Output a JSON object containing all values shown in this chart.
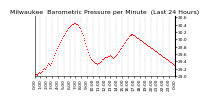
{
  "title": "Milwaukee  Barometric Pressure per Minute  (Last 24 Hours)",
  "line_color": "#ff0000",
  "bg_color": "#ffffff",
  "grid_color": "#c8c8c8",
  "ylim": [
    29.0,
    30.65
  ],
  "yticks": [
    29.0,
    29.2,
    29.4,
    29.6,
    29.8,
    30.0,
    30.2,
    30.4,
    30.6
  ],
  "pressure_values": [
    29.05,
    29.04,
    29.03,
    29.05,
    29.07,
    29.1,
    29.08,
    29.1,
    29.14,
    29.18,
    29.22,
    29.2,
    29.24,
    29.3,
    29.36,
    29.32,
    29.3,
    29.35,
    29.42,
    29.5,
    29.58,
    29.64,
    29.7,
    29.76,
    29.82,
    29.88,
    29.93,
    29.98,
    30.03,
    30.08,
    30.13,
    30.18,
    30.22,
    30.26,
    30.3,
    30.34,
    30.37,
    30.4,
    30.42,
    30.43,
    30.44,
    30.44,
    30.43,
    30.41,
    30.38,
    30.35,
    30.3,
    30.24,
    30.18,
    30.12,
    30.05,
    29.98,
    29.9,
    29.82,
    29.74,
    29.66,
    29.58,
    29.52,
    29.47,
    29.43,
    29.4,
    29.37,
    29.35,
    29.34,
    29.33,
    29.34,
    29.36,
    29.39,
    29.42,
    29.45,
    29.47,
    29.49,
    29.51,
    29.52,
    29.53,
    29.54,
    29.55,
    29.56,
    29.54,
    29.52,
    29.5,
    29.52,
    29.54,
    29.57,
    29.61,
    29.65,
    29.69,
    29.73,
    29.77,
    29.81,
    29.85,
    29.89,
    29.93,
    29.97,
    30.01,
    30.05,
    30.08,
    30.11,
    30.13,
    30.14,
    30.14,
    30.13,
    30.11,
    30.09,
    30.07,
    30.05,
    30.03,
    30.01,
    29.99,
    29.97,
    29.95,
    29.93,
    29.91,
    29.89,
    29.87,
    29.85,
    29.83,
    29.81,
    29.79,
    29.77,
    29.75,
    29.73,
    29.71,
    29.69,
    29.67,
    29.65,
    29.63,
    29.61,
    29.59,
    29.57,
    29.55,
    29.53,
    29.51,
    29.49,
    29.47,
    29.45,
    29.43,
    29.41,
    29.39,
    29.37,
    29.35,
    29.33,
    29.31,
    29.29
  ],
  "num_vgrid": 24,
  "title_fontsize": 4.5,
  "tick_fontsize": 3.2,
  "marker_size": 0.8,
  "line_width": 0.0
}
